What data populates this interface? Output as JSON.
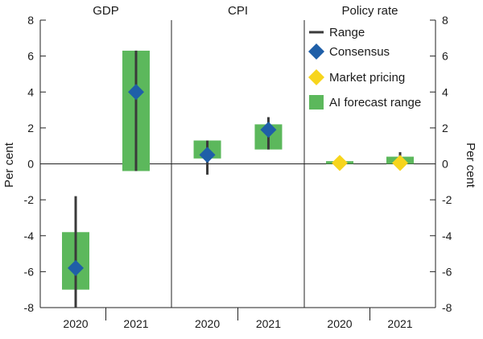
{
  "chart_data": {
    "type": "range",
    "ylabel": "Per cent",
    "ylim": [
      -8,
      8
    ],
    "yticks": [
      -8,
      -6,
      -4,
      -2,
      0,
      2,
      4,
      6,
      8
    ],
    "categories": [
      "2020",
      "2021"
    ],
    "panels": [
      {
        "title": "GDP",
        "points": [
          {
            "year": "2020",
            "ai_range": [
              -7.0,
              -3.8
            ],
            "range": [
              -8.0,
              -1.8
            ],
            "consensus": -5.8,
            "market": null
          },
          {
            "year": "2021",
            "ai_range": [
              -0.4,
              6.3
            ],
            "range": [
              -0.4,
              6.3
            ],
            "consensus": 4.0,
            "market": null
          }
        ]
      },
      {
        "title": "CPI",
        "points": [
          {
            "year": "2020",
            "ai_range": [
              0.3,
              1.3
            ],
            "range": [
              -0.6,
              1.3
            ],
            "consensus": 0.5,
            "market": null
          },
          {
            "year": "2021",
            "ai_range": [
              0.8,
              2.2
            ],
            "range": [
              0.8,
              2.6
            ],
            "consensus": 1.9,
            "market": null
          }
        ]
      },
      {
        "title": "Policy rate",
        "points": [
          {
            "year": "2020",
            "ai_range": [
              0.0,
              0.15
            ],
            "range": [
              0.0,
              0.25
            ],
            "consensus": 0.1,
            "market": 0.05
          },
          {
            "year": "2021",
            "ai_range": [
              0.0,
              0.4
            ],
            "range": [
              0.0,
              0.65
            ],
            "consensus": 0.1,
            "market": 0.05
          }
        ]
      }
    ],
    "legend": {
      "position": "top-right",
      "items": [
        {
          "key": "range",
          "label": "Range"
        },
        {
          "key": "consensus",
          "label": "Consensus"
        },
        {
          "key": "market",
          "label": "Market pricing"
        },
        {
          "key": "ai_range",
          "label": "AI forecast range"
        }
      ]
    },
    "colors": {
      "range": "#3a3a3a",
      "consensus": "#1f5fa8",
      "market": "#f7d51d",
      "ai_range": "#5cb85c",
      "axis": "#222222",
      "zero_line": "#222222"
    }
  }
}
